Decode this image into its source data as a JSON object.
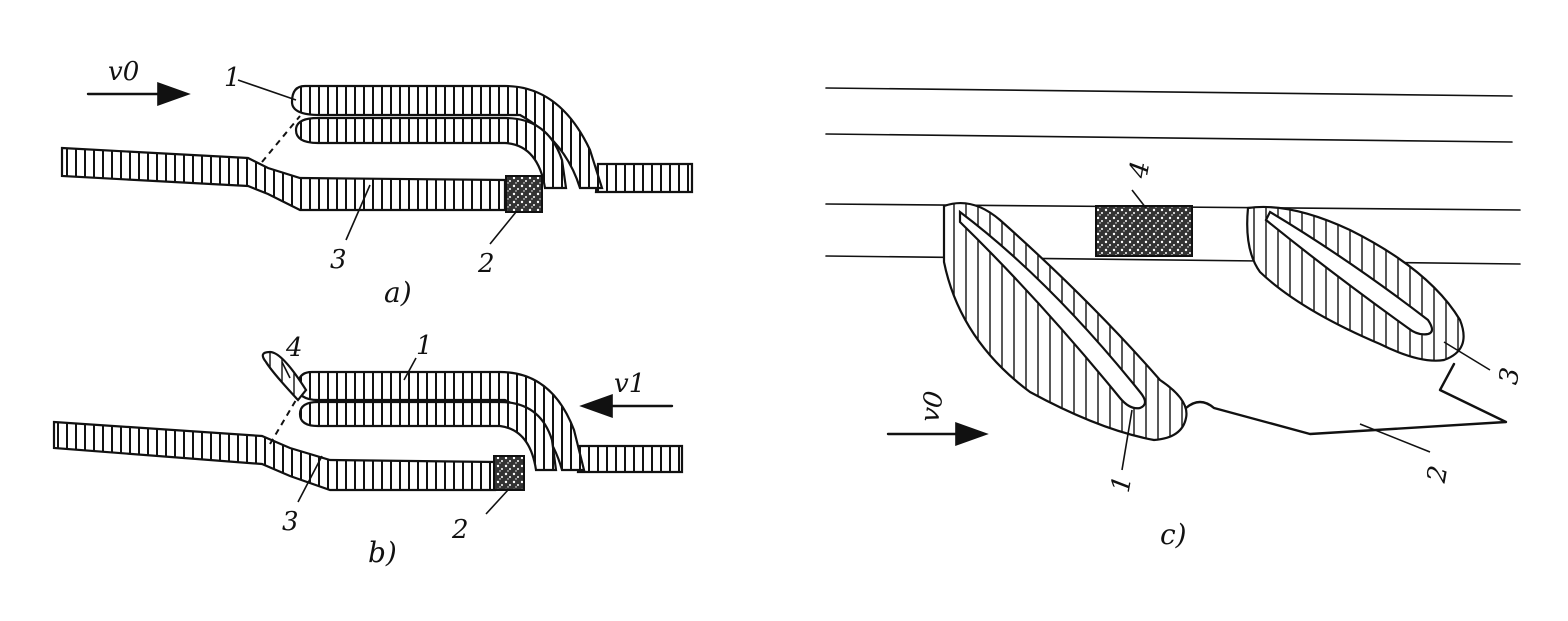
{
  "figure": {
    "panel_a": {
      "caption": "a)",
      "velocity": "v0",
      "labels": [
        "1",
        "2",
        "3"
      ]
    },
    "panel_b": {
      "caption": "b)",
      "velocity": "v1",
      "labels": [
        "1",
        "2",
        "3",
        "4"
      ]
    },
    "panel_c": {
      "caption": "c)",
      "velocity": "v0",
      "labels": [
        "1",
        "2",
        "3",
        "4"
      ]
    }
  }
}
